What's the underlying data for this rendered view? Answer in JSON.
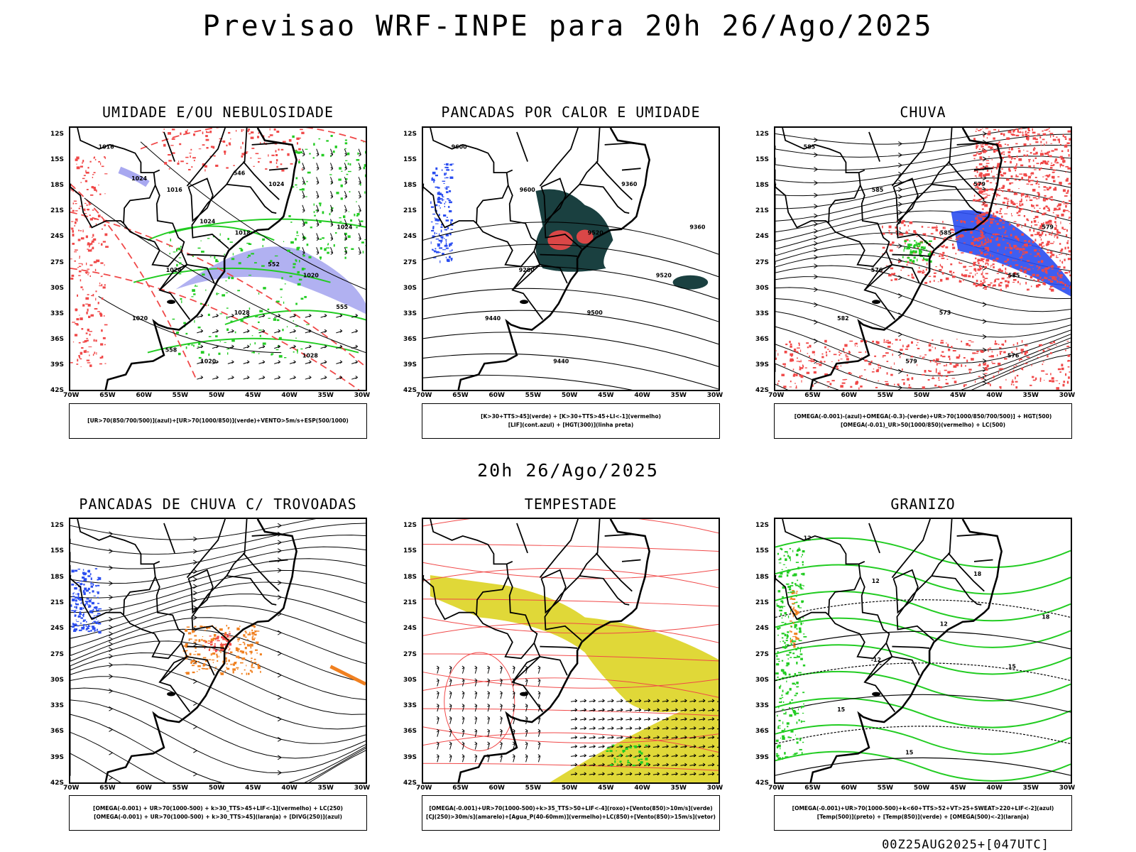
{
  "title": "Previsao WRF-INPE  para 20h 26/Ago/2025",
  "mid_date": "20h 26/Ago/2025",
  "footer": "00Z25AUG2025+[047UTC]",
  "axes": {
    "lat_labels": [
      "12S",
      "15S",
      "18S",
      "21S",
      "24S",
      "27S",
      "30S",
      "33S",
      "36S",
      "39S",
      "42S"
    ],
    "lon_labels": [
      "70W",
      "65W",
      "60W",
      "55W",
      "50W",
      "45W",
      "40W",
      "35W",
      "30W"
    ]
  },
  "colors": {
    "blue": "#2a4df0",
    "green": "#22cc22",
    "red": "#f04848",
    "lavender": "#a8a8f0",
    "dark_teal": "#1a4040",
    "yellow": "#e0d838",
    "orange": "#f08020"
  },
  "panels": [
    {
      "id": "umidade",
      "title": "UMIDADE E/OU NEBULOSIDADE",
      "legend": [
        "[UR>70(850/700/500)](azul)+[UR>70(1000/850)](verde)+VENTO>5m/s+ESP(500/1000)"
      ],
      "contour_labels": [
        "1016",
        "1016",
        "1018",
        "1020",
        "1020",
        "1020",
        "1024",
        "1024",
        "1024",
        "1028",
        "1028",
        "1024",
        "1024",
        "552",
        "555",
        "558",
        "546"
      ]
    },
    {
      "id": "pancadas-calor",
      "title": "PANCADAS POR CALOR E UMIDADE",
      "legend": [
        "[K>30+TTS>45](verde) + [K>30+TTS>45+LI<-1](vermelho)",
        "[LIF](cont.azul) + [HGT(300)](linha preta)"
      ],
      "contour_labels": [
        "9600",
        "9600",
        "9520",
        "9520",
        "9440",
        "9440",
        "9360",
        "9360",
        "9280",
        "9500"
      ]
    },
    {
      "id": "chuva",
      "title": "CHUVA",
      "legend": [
        "[OMEGA(-0.001)-(azul)+OMEGA(-0.3)-(verde)+UR>70(1000/850/700/500)] + HGT(500)",
        "[OMEGA(-0.01)_UR>50(1000/850)(vermelho) + LC(500)"
      ],
      "contour_labels": [
        "585",
        "585",
        "585",
        "585",
        "582",
        "579",
        "579",
        "579",
        "576",
        "573",
        "576"
      ]
    },
    {
      "id": "trovoadas",
      "title": "PANCADAS DE CHUVA C/ TROVOADAS",
      "legend": [
        "[OMEGA(-0.001) + UR>70(1000-500) + k>30_TTS>45+LIF<-1](vermelho) + LC(250)",
        "[OMEGA(-0.001) + UR>70(1000-500) + k>30_TTS>45](laranja) + [DIVG(250)](azul)"
      ],
      "contour_labels": []
    },
    {
      "id": "tempestade",
      "title": "TEMPESTADE",
      "legend": [
        "[OMEGA(-0.001)+UR>70(1000-500)+k>35_TTS>50+LIF<-4](roxo)+[Vento(850)>10m/s](verde)",
        "[CJ(250)>30m/s](amarelo)+[Agua_P(40-60mm)](vermelho)+LC(850)+[Vento(850)>15m/s](vetor)"
      ],
      "contour_labels": []
    },
    {
      "id": "granizo",
      "title": "GRANIZO",
      "legend": [
        "[OMEGA(-0.001)+UR>70(1000-500)+k<60+TTS>52+VT>25+SWEAT>220+LIF<-2](azul)",
        "[Temp(500)](preto) + [Temp(850)](verde) + [OMEGA(500)<-2](laranja)"
      ],
      "contour_labels": [
        "12",
        "12",
        "12",
        "15",
        "15",
        "15",
        "18",
        "18",
        "-12"
      ]
    }
  ]
}
